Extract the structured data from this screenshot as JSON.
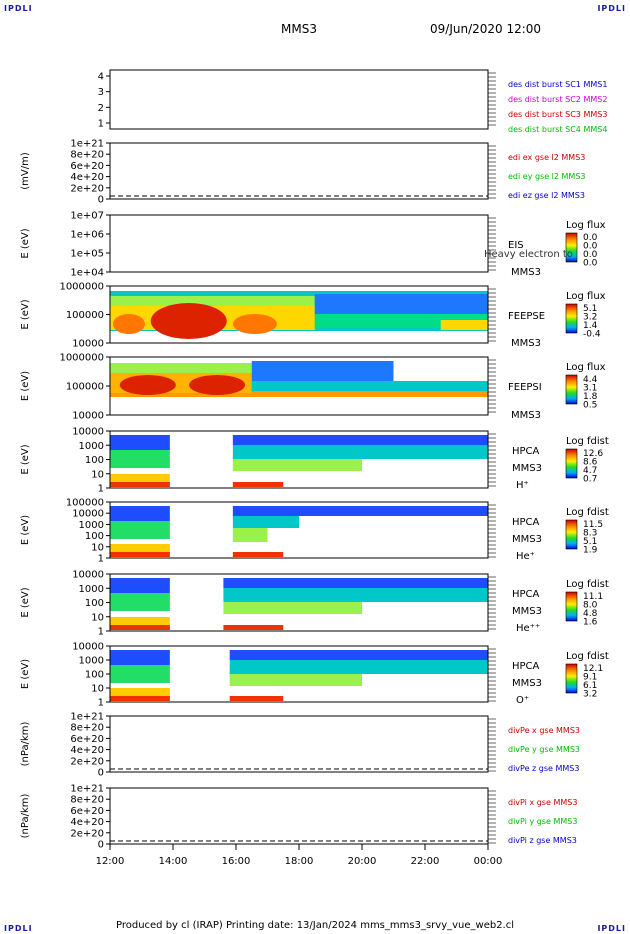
{
  "header": {
    "corner_tl": "IPDLI",
    "corner_tr": "IPDLI",
    "corner_bl": "IPDLI",
    "corner_br": "IPDLI",
    "spacecraft": "MMS3",
    "datetime": "09/Jun/2020 12:00"
  },
  "footer": {
    "text": "Produced by cl (IRAP)   Printing date: 13/Jan/2024   mms_mms3_srvy_vue_web2.cl"
  },
  "chart_data": {
    "type": "heatmap",
    "x_ticks": [
      "12:00",
      "14:00",
      "16:00",
      "18:00",
      "20:00",
      "22:00",
      "00:00"
    ],
    "panels": [
      {
        "id": "des-dist",
        "y_ticks": [
          "1",
          "2",
          "3",
          "4"
        ],
        "ylabel": "",
        "legend": [
          {
            "text": "des dist burst SC1 MMS1",
            "color": "#0000cc"
          },
          {
            "text": "des dist burst SC2 MMS2",
            "color": "#cc00cc"
          },
          {
            "text": "des dist burst SC3 MMS3",
            "color": "#cc0000"
          },
          {
            "text": "des dist burst SC4 MMS4",
            "color": "#00bb00"
          }
        ]
      },
      {
        "id": "edi-e",
        "y_ticks": [
          "0",
          "2e+20",
          "4e+20",
          "6e+20",
          "8e+20",
          "1e+21"
        ],
        "ylabel": "(mV/m)",
        "legend": [
          {
            "text": "edi ex gse l2 MMS3",
            "color": "#cc0000"
          },
          {
            "text": "edi ey gse l2 MMS3",
            "color": "#00bb00"
          },
          {
            "text": "edi ez gse l2 MMS3",
            "color": "#0000cc"
          }
        ]
      },
      {
        "id": "eis",
        "y_ticks": [
          "1e+04",
          "1e+05",
          "1e+06",
          "1e+07"
        ],
        "ylabel": "E (eV)",
        "label_lines": [
          "EIS",
          "MMS3"
        ],
        "overlay_text": "Heavy electron to",
        "cbar_title": "Log flux",
        "cbar_ticks": [
          "0.0",
          "0.0",
          "0.0",
          "0.0"
        ]
      },
      {
        "id": "feepse",
        "y_ticks": [
          "10000",
          "100000",
          "1000000"
        ],
        "ylabel": "E (eV)",
        "label_lines": [
          "FEEPSE",
          "MMS3"
        ],
        "cbar_title": "Log flux",
        "cbar_ticks": [
          "5.1",
          "3.2",
          "1.4",
          "-0.4"
        ]
      },
      {
        "id": "feepsi",
        "y_ticks": [
          "10000",
          "100000",
          "1000000"
        ],
        "ylabel": "E (eV)",
        "label_lines": [
          "FEEPSI",
          "MMS3"
        ],
        "cbar_title": "Log flux",
        "cbar_ticks": [
          "4.4",
          "3.1",
          "1.8",
          "0.5"
        ]
      },
      {
        "id": "hpca-h",
        "y_ticks": [
          "1",
          "10",
          "100",
          "1000",
          "10000"
        ],
        "ylabel": "E (eV)",
        "label_lines": [
          "HPCA",
          "MMS3",
          "H⁺"
        ],
        "cbar_title": "Log fdist",
        "cbar_ticks": [
          "12.6",
          "8.6",
          "4.7",
          "0.7"
        ]
      },
      {
        "id": "hpca-he",
        "y_ticks": [
          "1",
          "10",
          "100",
          "1000",
          "10000",
          "100000"
        ],
        "ylabel": "E (eV)",
        "label_lines": [
          "HPCA",
          "MMS3",
          "He⁺"
        ],
        "cbar_title": "Log fdist",
        "cbar_ticks": [
          "11.5",
          "8.3",
          "5.1",
          "1.9"
        ]
      },
      {
        "id": "hpca-hepp",
        "y_ticks": [
          "1",
          "10",
          "100",
          "1000",
          "10000"
        ],
        "ylabel": "E (eV)",
        "label_lines": [
          "HPCA",
          "MMS3",
          "He⁺⁺"
        ],
        "cbar_title": "Log fdist",
        "cbar_ticks": [
          "11.1",
          "8.0",
          "4.8",
          "1.6"
        ]
      },
      {
        "id": "hpca-o",
        "y_ticks": [
          "1",
          "10",
          "100",
          "1000",
          "10000"
        ],
        "ylabel": "E (eV)",
        "label_lines": [
          "HPCA",
          "MMS3",
          "O⁺"
        ],
        "cbar_title": "Log fdist",
        "cbar_ticks": [
          "12.1",
          "9.1",
          "6.1",
          "3.2"
        ]
      },
      {
        "id": "divpe",
        "y_ticks": [
          "0",
          "2e+20",
          "4e+20",
          "6e+20",
          "8e+20",
          "1e+21"
        ],
        "ylabel": "(nPa/km)",
        "legend": [
          {
            "text": "divPe x gse MMS3",
            "color": "#cc0000"
          },
          {
            "text": "divPe y gse MMS3",
            "color": "#00bb00"
          },
          {
            "text": "divPe z gse MMS3",
            "color": "#0000cc"
          }
        ]
      },
      {
        "id": "divpi",
        "y_ticks": [
          "0",
          "2e+20",
          "4e+20",
          "6e+20",
          "8e+20",
          "1e+21"
        ],
        "ylabel": "(nPa/km)",
        "legend": [
          {
            "text": "divPi x gse MMS3",
            "color": "#cc0000"
          },
          {
            "text": "divPi y gse MMS3",
            "color": "#00bb00"
          },
          {
            "text": "divPi z gse MMS3",
            "color": "#0000cc"
          }
        ]
      }
    ]
  }
}
